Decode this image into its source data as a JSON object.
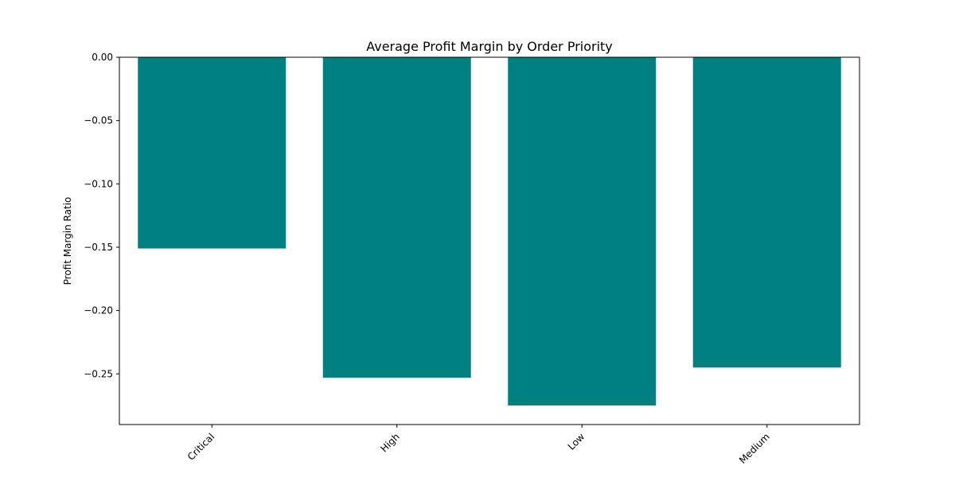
{
  "chart_data": {
    "type": "bar",
    "title": "Average Profit Margin by Order Priority",
    "xlabel": "",
    "ylabel": "Profit Margin Ratio",
    "categories": [
      "Critical",
      "High",
      "Low",
      "Medium"
    ],
    "values": [
      -0.151,
      -0.253,
      -0.275,
      -0.245
    ],
    "ylim": [
      -0.29,
      0.0
    ],
    "yticks": [
      0.0,
      -0.05,
      -0.1,
      -0.15,
      -0.2,
      -0.25
    ],
    "ytick_labels": [
      "0.00",
      "−0.05",
      "−0.10",
      "−0.15",
      "−0.20",
      "−0.25"
    ],
    "bar_color": "#008080",
    "grid": false,
    "legend": "none",
    "xtick_rotation_deg": 45
  }
}
